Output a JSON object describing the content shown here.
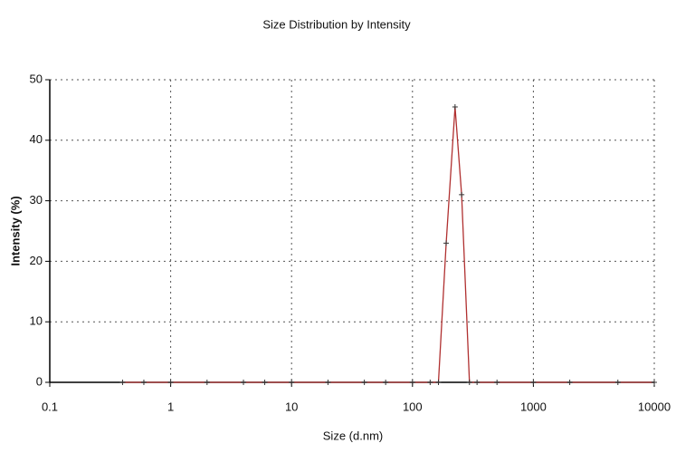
{
  "chart_data": {
    "type": "line",
    "title": "Size Distribution by Intensity",
    "x_label": "Size (d.nm)",
    "y_label": "Intensity (%)",
    "x": [
      0.4,
      0.6,
      1,
      2,
      4,
      6,
      10,
      20,
      40,
      60,
      100,
      140,
      164,
      190,
      225,
      255,
      296,
      342,
      500,
      1000,
      2000,
      5000,
      10000
    ],
    "series": [
      {
        "name": "Intensity",
        "color": "#b03030",
        "values": [
          0,
          0,
          0,
          0,
          0,
          0,
          0,
          0,
          0,
          0,
          0,
          0,
          0,
          23,
          45.5,
          31,
          0,
          0,
          0,
          0,
          0,
          0,
          0
        ]
      }
    ],
    "xscale": "log",
    "xlim": [
      0.1,
      10000
    ],
    "xticks": [
      0.1,
      1,
      10,
      100,
      1000,
      10000
    ],
    "ylim": [
      0,
      50
    ],
    "yticks": [
      0,
      10,
      20,
      30,
      40,
      50
    ],
    "grid": true
  }
}
